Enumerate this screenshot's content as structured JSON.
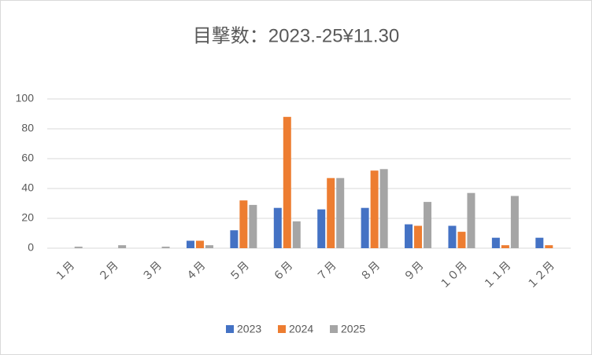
{
  "chart_data": {
    "type": "bar",
    "title": "目撃数：2023.-25¥11.30",
    "categories": [
      "１月",
      "２月",
      "３月",
      "４月",
      "５月",
      "６月",
      "７月",
      "８月",
      "９月",
      "１０月",
      "１１月",
      "１２月"
    ],
    "series": [
      {
        "name": "2023",
        "color": "#4472c4",
        "values": [
          0,
          0,
          0,
          5,
          12,
          27,
          26,
          27,
          16,
          15,
          7,
          7
        ]
      },
      {
        "name": "2024",
        "color": "#ed7d31",
        "values": [
          0,
          0,
          0,
          5,
          32,
          88,
          47,
          52,
          15,
          11,
          2,
          2
        ]
      },
      {
        "name": "2025",
        "color": "#a5a5a5",
        "values": [
          1,
          2,
          1,
          2,
          29,
          18,
          47,
          53,
          31,
          37,
          35,
          null
        ]
      }
    ],
    "ylim": [
      0,
      100
    ],
    "yticks": [
      0,
      20,
      40,
      60,
      80,
      100
    ],
    "grid": true,
    "legend": "bottom"
  }
}
